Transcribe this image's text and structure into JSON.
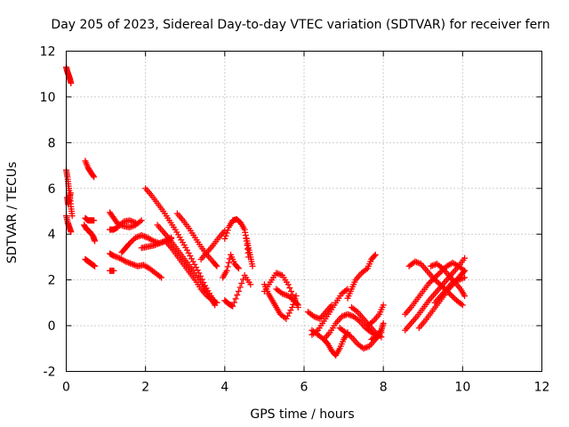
{
  "chart_data": {
    "type": "scatter",
    "title": "Day 205 of 2023, Sidereal Day-to-day VTEC variation (SDTVAR) for receiver fern",
    "xlabel": "GPS time / hours",
    "ylabel": "SDTVAR / TECUs",
    "xlim": [
      0,
      12
    ],
    "ylim": [
      -2,
      12
    ],
    "xticks": [
      "0",
      "2",
      "4",
      "6",
      "8",
      "10",
      "12"
    ],
    "yticks": [
      "-2",
      "0",
      "2",
      "4",
      "6",
      "8",
      "10",
      "12"
    ],
    "grid": true,
    "marker": "+",
    "color": "#ff0000",
    "series": [
      {
        "name": "s1",
        "x": [
          0.0,
          0.03,
          0.06,
          0.09,
          0.12
        ],
        "y": [
          11.3,
          11.1,
          10.95,
          10.8,
          10.6
        ]
      },
      {
        "name": "s2",
        "x": [
          0.0,
          0.03,
          0.06,
          0.09,
          0.12,
          0.15
        ],
        "y": [
          6.8,
          6.5,
          6.1,
          5.7,
          5.2,
          4.8
        ]
      },
      {
        "name": "s3",
        "x": [
          0.0,
          0.04,
          0.08,
          0.12
        ],
        "y": [
          4.8,
          4.5,
          4.3,
          4.1
        ]
      },
      {
        "name": "s4",
        "x": [
          0.02,
          0.05,
          0.08,
          0.11
        ],
        "y": [
          5.6,
          5.3,
          5.5,
          5.8
        ]
      },
      {
        "name": "s5",
        "x": [
          0.48,
          0.55,
          0.62,
          0.7
        ],
        "y": [
          7.2,
          6.9,
          6.7,
          6.5
        ]
      },
      {
        "name": "s6",
        "x": [
          0.45,
          0.52,
          0.6,
          0.68,
          0.72
        ],
        "y": [
          4.4,
          4.2,
          4.1,
          3.9,
          3.7
        ]
      },
      {
        "name": "s7",
        "x": [
          0.48,
          0.55,
          0.62,
          0.7
        ],
        "y": [
          4.7,
          4.6,
          4.6,
          4.6
        ]
      },
      {
        "name": "s8",
        "x": [
          0.48,
          0.56,
          0.64,
          0.72
        ],
        "y": [
          2.9,
          2.8,
          2.7,
          2.6
        ]
      },
      {
        "name": "s9",
        "x": [
          1.1,
          1.2,
          1.3,
          1.45,
          1.6,
          1.75,
          1.9
        ],
        "y": [
          4.95,
          4.7,
          4.45,
          4.35,
          4.3,
          4.4,
          4.6
        ]
      },
      {
        "name": "s10",
        "x": [
          1.1,
          1.2,
          1.3,
          1.45,
          1.6,
          1.75
        ],
        "y": [
          4.2,
          4.2,
          4.3,
          4.55,
          4.6,
          4.5
        ]
      },
      {
        "name": "s11",
        "x": [
          1.1,
          1.2,
          1.35,
          1.5,
          1.65,
          1.8,
          1.95,
          2.1,
          2.25,
          2.4
        ],
        "y": [
          3.15,
          3.05,
          2.95,
          2.8,
          2.7,
          2.6,
          2.65,
          2.5,
          2.3,
          2.1
        ]
      },
      {
        "name": "s12",
        "x": [
          1.1,
          1.2
        ],
        "y": [
          2.4,
          2.4
        ]
      },
      {
        "name": "s13",
        "x": [
          1.4,
          1.5,
          1.6,
          1.75,
          1.9,
          2.05,
          2.2,
          2.35,
          2.5,
          2.65
        ],
        "y": [
          3.2,
          3.4,
          3.6,
          3.85,
          3.95,
          3.85,
          3.7,
          3.6,
          3.7,
          3.85
        ]
      },
      {
        "name": "s14",
        "x": [
          1.9,
          2.05,
          2.2,
          2.35,
          2.5,
          2.65
        ],
        "y": [
          3.4,
          3.45,
          3.5,
          3.6,
          3.7,
          3.8
        ]
      },
      {
        "name": "s15",
        "x": [
          2.0,
          2.15,
          2.3,
          2.45,
          2.6,
          2.75,
          2.9,
          3.05,
          3.2,
          3.35,
          3.5,
          3.65,
          3.75
        ],
        "y": [
          6.0,
          5.7,
          5.35,
          5.0,
          4.6,
          4.2,
          3.75,
          3.3,
          2.8,
          2.3,
          1.75,
          1.3,
          1.0
        ]
      },
      {
        "name": "s16",
        "x": [
          2.3,
          2.45,
          2.6,
          2.75,
          2.9,
          3.05,
          3.2,
          3.35,
          3.5,
          3.65,
          3.75
        ],
        "y": [
          4.4,
          4.1,
          3.8,
          3.45,
          3.1,
          2.75,
          2.4,
          2.0,
          1.6,
          1.2,
          0.9
        ]
      },
      {
        "name": "s17",
        "x": [
          2.5,
          2.65,
          2.8,
          2.95,
          3.1,
          3.25,
          3.4,
          3.55,
          3.7,
          3.8
        ],
        "y": [
          3.7,
          3.4,
          3.05,
          2.7,
          2.35,
          2.0,
          1.6,
          1.3,
          1.1,
          1.0
        ]
      },
      {
        "name": "s18",
        "x": [
          2.8,
          2.95,
          3.1,
          3.25,
          3.4,
          3.55,
          3.7,
          3.8
        ],
        "y": [
          4.9,
          4.6,
          4.25,
          3.85,
          3.45,
          3.1,
          2.8,
          2.6
        ]
      },
      {
        "name": "s19",
        "x": [
          3.4,
          3.55,
          3.7,
          3.85,
          4.0
        ],
        "y": [
          2.9,
          3.2,
          3.5,
          3.85,
          4.15
        ]
      },
      {
        "name": "s20",
        "x": [
          4.0,
          4.1,
          4.2,
          4.3,
          4.4,
          4.5,
          4.55,
          4.6
        ],
        "y": [
          3.8,
          4.3,
          4.6,
          4.65,
          4.5,
          4.2,
          3.7,
          3.0
        ]
      },
      {
        "name": "s21",
        "x": [
          3.95,
          4.05,
          4.15,
          4.25,
          4.35
        ],
        "y": [
          2.1,
          2.4,
          3.1,
          2.7,
          2.5
        ]
      },
      {
        "name": "s22",
        "x": [
          4.0,
          4.1,
          4.2,
          4.35,
          4.5,
          4.65
        ],
        "y": [
          1.1,
          0.95,
          0.85,
          1.5,
          2.2,
          1.8
        ]
      },
      {
        "name": "s23",
        "x": [
          4.55,
          4.6,
          4.65,
          4.7
        ],
        "y": [
          3.8,
          3.4,
          3.0,
          2.6
        ]
      },
      {
        "name": "s24",
        "x": [
          5.0,
          5.1,
          5.2,
          5.3,
          5.4,
          5.55,
          5.7,
          5.8
        ],
        "y": [
          1.8,
          1.4,
          1.1,
          0.8,
          0.5,
          0.3,
          0.8,
          1.3
        ]
      },
      {
        "name": "s25",
        "x": [
          5.0,
          5.15,
          5.3,
          5.45,
          5.6,
          5.75,
          5.85
        ],
        "y": [
          1.5,
          1.9,
          2.3,
          2.2,
          1.8,
          1.2,
          0.8
        ]
      },
      {
        "name": "s26",
        "x": [
          5.3,
          5.45,
          5.6,
          5.75,
          5.85
        ],
        "y": [
          1.6,
          1.4,
          1.3,
          1.1,
          0.9
        ]
      },
      {
        "name": "s27",
        "x": [
          6.1,
          6.25,
          6.4,
          6.55,
          6.7
        ],
        "y": [
          0.6,
          0.4,
          0.3,
          0.6,
          0.9
        ]
      },
      {
        "name": "s28",
        "x": [
          6.2,
          6.35,
          6.5,
          6.65,
          6.8,
          6.95,
          7.1
        ],
        "y": [
          -0.4,
          -0.2,
          0.2,
          0.6,
          1.0,
          1.4,
          1.6
        ]
      },
      {
        "name": "s29",
        "x": [
          6.2,
          6.35,
          6.5,
          6.6,
          6.7,
          6.8,
          6.9,
          7.0,
          7.1
        ],
        "y": [
          -0.2,
          -0.4,
          -0.6,
          -0.8,
          -1.1,
          -1.3,
          -1.0,
          -0.6,
          -0.3
        ]
      },
      {
        "name": "s30",
        "x": [
          6.5,
          6.65,
          6.8,
          6.95,
          7.1,
          7.25,
          7.4,
          7.55,
          7.7,
          7.85
        ],
        "y": [
          -0.6,
          -0.3,
          0.1,
          0.4,
          0.5,
          0.4,
          0.2,
          -0.1,
          -0.3,
          -0.5
        ]
      },
      {
        "name": "s31",
        "x": [
          6.9,
          7.05,
          7.2,
          7.35,
          7.5,
          7.65,
          7.8,
          7.95
        ],
        "y": [
          -0.1,
          -0.3,
          -0.5,
          -0.8,
          -1.0,
          -0.9,
          -0.6,
          -0.3
        ]
      },
      {
        "name": "s32",
        "x": [
          7.1,
          7.2,
          7.3,
          7.45,
          7.6,
          7.7,
          7.8
        ],
        "y": [
          1.2,
          1.6,
          2.0,
          2.3,
          2.5,
          2.9,
          3.1
        ]
      },
      {
        "name": "s33",
        "x": [
          7.2,
          7.35,
          7.5,
          7.65,
          7.8,
          7.95
        ],
        "y": [
          0.8,
          0.6,
          0.3,
          0.0,
          -0.3,
          -0.5
        ]
      },
      {
        "name": "s34",
        "x": [
          7.6,
          7.75,
          7.9,
          8.0
        ],
        "y": [
          0.0,
          0.2,
          0.5,
          0.9
        ]
      },
      {
        "name": "s35",
        "x": [
          7.7,
          7.85,
          7.95,
          8.0
        ],
        "y": [
          -0.6,
          -0.4,
          -0.2,
          0.1
        ]
      },
      {
        "name": "s36",
        "x": [
          8.55,
          8.7,
          8.85,
          9.0,
          9.15,
          9.3,
          9.45,
          9.6,
          9.75,
          9.9,
          10.05
        ],
        "y": [
          -0.2,
          0.1,
          0.4,
          0.75,
          1.1,
          1.4,
          1.7,
          2.0,
          2.3,
          2.6,
          2.95
        ]
      },
      {
        "name": "s37",
        "x": [
          8.55,
          8.7,
          8.85,
          9.0,
          9.15,
          9.3,
          9.45,
          9.6,
          9.75,
          9.9,
          10.05
        ],
        "y": [
          0.5,
          0.8,
          1.15,
          1.5,
          1.85,
          2.1,
          2.35,
          2.6,
          2.75,
          2.6,
          2.4
        ]
      },
      {
        "name": "s38",
        "x": [
          8.65,
          8.8,
          8.95,
          9.1,
          9.25,
          9.4,
          9.55,
          9.7,
          9.85,
          10.0
        ],
        "y": [
          2.6,
          2.8,
          2.7,
          2.4,
          2.1,
          1.85,
          1.6,
          1.35,
          1.1,
          0.9
        ]
      },
      {
        "name": "s39",
        "x": [
          8.9,
          9.05,
          9.2,
          9.35,
          9.5,
          9.65,
          9.8,
          9.95,
          10.05
        ],
        "y": [
          -0.1,
          0.2,
          0.55,
          0.9,
          1.25,
          1.6,
          1.9,
          2.2,
          2.4
        ]
      },
      {
        "name": "s40",
        "x": [
          9.2,
          9.35,
          9.5,
          9.65,
          9.8,
          9.95,
          10.05
        ],
        "y": [
          2.6,
          2.7,
          2.5,
          2.2,
          1.9,
          1.6,
          1.3
        ]
      },
      {
        "name": "s41",
        "x": [
          9.3,
          9.45,
          9.6,
          9.75,
          9.9,
          10.05
        ],
        "y": [
          1.0,
          1.3,
          1.6,
          1.9,
          2.0,
          2.1
        ]
      }
    ]
  }
}
